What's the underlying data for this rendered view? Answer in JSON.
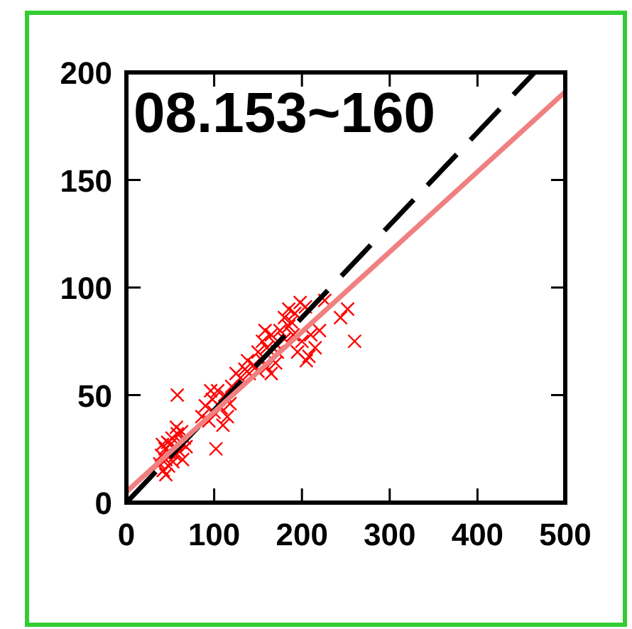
{
  "chart_data": {
    "type": "scatter",
    "title": "08.153~160",
    "xlim": [
      0,
      500
    ],
    "ylim": [
      0,
      200
    ],
    "xticks": [
      0,
      100,
      200,
      300,
      400,
      500
    ],
    "yticks": [
      0,
      50,
      100,
      150,
      200
    ],
    "series": [
      {
        "color": "#ff0000",
        "marker": "cross",
        "x": [
          38,
          40,
          42,
          44,
          45,
          47,
          48,
          50,
          52,
          53,
          55,
          56,
          58,
          60,
          62,
          64,
          66,
          68,
          45,
          50,
          57,
          41,
          63,
          58,
          102,
          86,
          90,
          94,
          98,
          100,
          104,
          108,
          112,
          115,
          118,
          120,
          110,
          96,
          125,
          130,
          135,
          140,
          145,
          150,
          155,
          160,
          165,
          170,
          138,
          150,
          155,
          160,
          165,
          170,
          175,
          180,
          185,
          190,
          158,
          172,
          180,
          185,
          192,
          198,
          204,
          188,
          195,
          200,
          205,
          210,
          215,
          220,
          208,
          226,
          252,
          244,
          260
        ],
        "values": [
          18,
          22,
          15,
          25,
          20,
          28,
          17,
          23,
          30,
          19,
          26,
          22,
          32,
          24,
          28,
          20,
          30,
          26,
          13,
          27,
          35,
          27,
          33,
          50,
          25,
          40,
          45,
          38,
          48,
          42,
          52,
          44,
          50,
          40,
          46,
          54,
          36,
          52,
          60,
          58,
          62,
          60,
          64,
          61,
          66,
          63,
          60,
          65,
          66,
          70,
          75,
          72,
          78,
          74,
          80,
          76,
          82,
          78,
          80,
          70,
          86,
          90,
          88,
          93,
          91,
          84,
          70,
          75,
          66,
          78,
          72,
          80,
          68,
          94,
          90,
          86,
          75
        ]
      },
      {
        "type": "line",
        "color": "#000000",
        "line_style": "dashed",
        "marker": "none",
        "x": [
          0,
          465
        ],
        "values": [
          0,
          200
        ]
      },
      {
        "type": "line",
        "color": "#f08080",
        "line_style": "solid",
        "marker": "none",
        "x": [
          0,
          500
        ],
        "values": [
          5,
          191
        ]
      }
    ]
  }
}
